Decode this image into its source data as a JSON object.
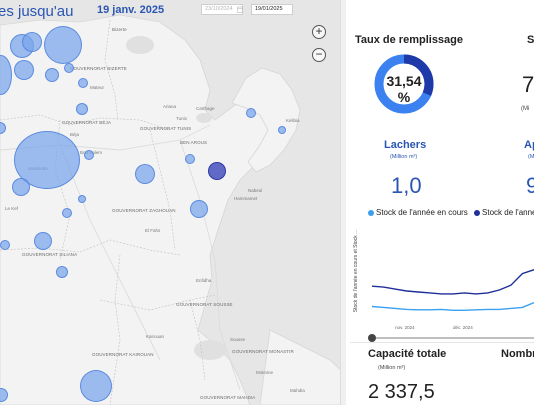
{
  "header": {
    "title_fragment": "es jusqu'au",
    "date_label": "19 janv. 2025",
    "date_start": "23/10/2024",
    "date_end": "19/01/2025"
  },
  "map": {
    "zoom_in": "+",
    "zoom_out": "−",
    "labels": {
      "bizerte": "Bizerte",
      "gouv_bizerte": "GOUVERNORAT BIZERTE",
      "mateur": "Mateur",
      "beja": "Béja",
      "gouv_beja": "GOUVERNORAT BÉJA",
      "ariana": "Ariana",
      "tunis": "Tunis",
      "carthage": "Carthage",
      "gouv_tunis": "GOUVERNORAT TUNIS",
      "ben_arous": "BEN AROUS",
      "bou_salem": "Bou Salem",
      "jendouba": "Jendouba",
      "zaghouan": "GOUVERNORAT ZAGHOUAN",
      "siliana": "GOUVERNORAT SILIANA",
      "sousse": "Sousse",
      "monastir": "GOUVERNORAT MONASTIR",
      "kairouan": "Kairouan",
      "gouv_kairouan": "GOUVERNORAT KAIROUAN",
      "gouv_sousse": "GOUVERNORAT SOUSSE",
      "nabeul": "Nabeul",
      "hammamet": "Hammamet",
      "kelibia": "Kelibia",
      "el_fahs": "El Fahs",
      "le_kef": "Le Kef",
      "enfidha": "Enfidha",
      "mahdia": "Mahdia",
      "moknine": "Moknine",
      "gouv_mahdia": "GOUVERNORAT MAHDIA"
    }
  },
  "gauge": {
    "title": "Taux de remplissage",
    "percent": 31.54,
    "label": "31,54\n%",
    "label_value": "31,54",
    "label_unit": "%",
    "color_fill": "#1d3aa8",
    "color_rest": "#3b82f0"
  },
  "stock": {
    "title_fragment": "S",
    "value_fragment": "7",
    "unit_fragment": "(Mi"
  },
  "lachers": {
    "title": "Lachers",
    "unit": "(Million m³)",
    "value": "1,0"
  },
  "apports": {
    "title_fragment": "Ap",
    "unit_fragment": "(M",
    "value_fragment": "9"
  },
  "chart_data": {
    "type": "line",
    "legend": [
      "Stock de l'année en cours",
      "Stock de l'anné"
    ],
    "ylabel": "Stock de l'année en cours et Stock ...",
    "x_ticks": [
      "nov. 2024",
      "déc. 2024"
    ],
    "series": [
      {
        "name": "Stock de l'année en cours",
        "color": "#3aa0f0",
        "values": [
          14,
          13,
          12,
          11,
          10.5,
          10.5,
          11,
          10,
          10,
          10.5,
          11,
          11,
          12,
          13,
          18
        ]
      },
      {
        "name": "Stock de l'anné",
        "color": "#1e2f9a",
        "values": [
          35,
          34,
          32,
          30,
          29,
          28,
          27,
          27,
          28,
          27,
          28,
          31,
          36,
          48,
          52
        ]
      }
    ],
    "ylim": [
      0,
      60
    ]
  },
  "capacite": {
    "title": "Capacité totale",
    "unit": "(Million m³)",
    "value": "2 337,5"
  },
  "nombre": {
    "title_fragment": "Nombr"
  },
  "colors": {
    "accent": "#2a56b3",
    "bubble": "#78a5eb",
    "bubble_dark": "#4650be"
  }
}
